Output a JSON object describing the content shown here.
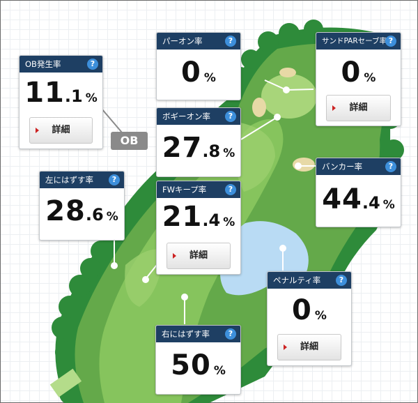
{
  "course": {
    "ob_tag": "OB"
  },
  "cards": {
    "ob_rate": {
      "title": "OB発生率",
      "int": "11",
      "frac": ".1",
      "unit": "%",
      "detail": "詳細"
    },
    "par_on": {
      "title": "パーオン率",
      "int": "0",
      "frac": "",
      "unit": "%"
    },
    "sand_save": {
      "title": "サンドPARセーブ率",
      "int": "0",
      "frac": "",
      "unit": "%",
      "detail": "詳細"
    },
    "bogey_on": {
      "title": "ボギーオン率",
      "int": "27",
      "frac": ".8",
      "unit": "%"
    },
    "bunker": {
      "title": "バンカー率",
      "int": "44",
      "frac": ".4",
      "unit": "%"
    },
    "miss_left": {
      "title": "左にはずす率",
      "int": "28",
      "frac": ".6",
      "unit": "%"
    },
    "fw_keep": {
      "title": "FWキープ率",
      "int": "21",
      "frac": ".4",
      "unit": "%",
      "detail": "詳細"
    },
    "penalty": {
      "title": "ペナルティ率",
      "int": "0",
      "frac": "",
      "unit": "%",
      "detail": "詳細"
    },
    "miss_right": {
      "title": "右にはずす率",
      "int": "50",
      "frac": "",
      "unit": "%"
    }
  },
  "help_glyph": "?"
}
